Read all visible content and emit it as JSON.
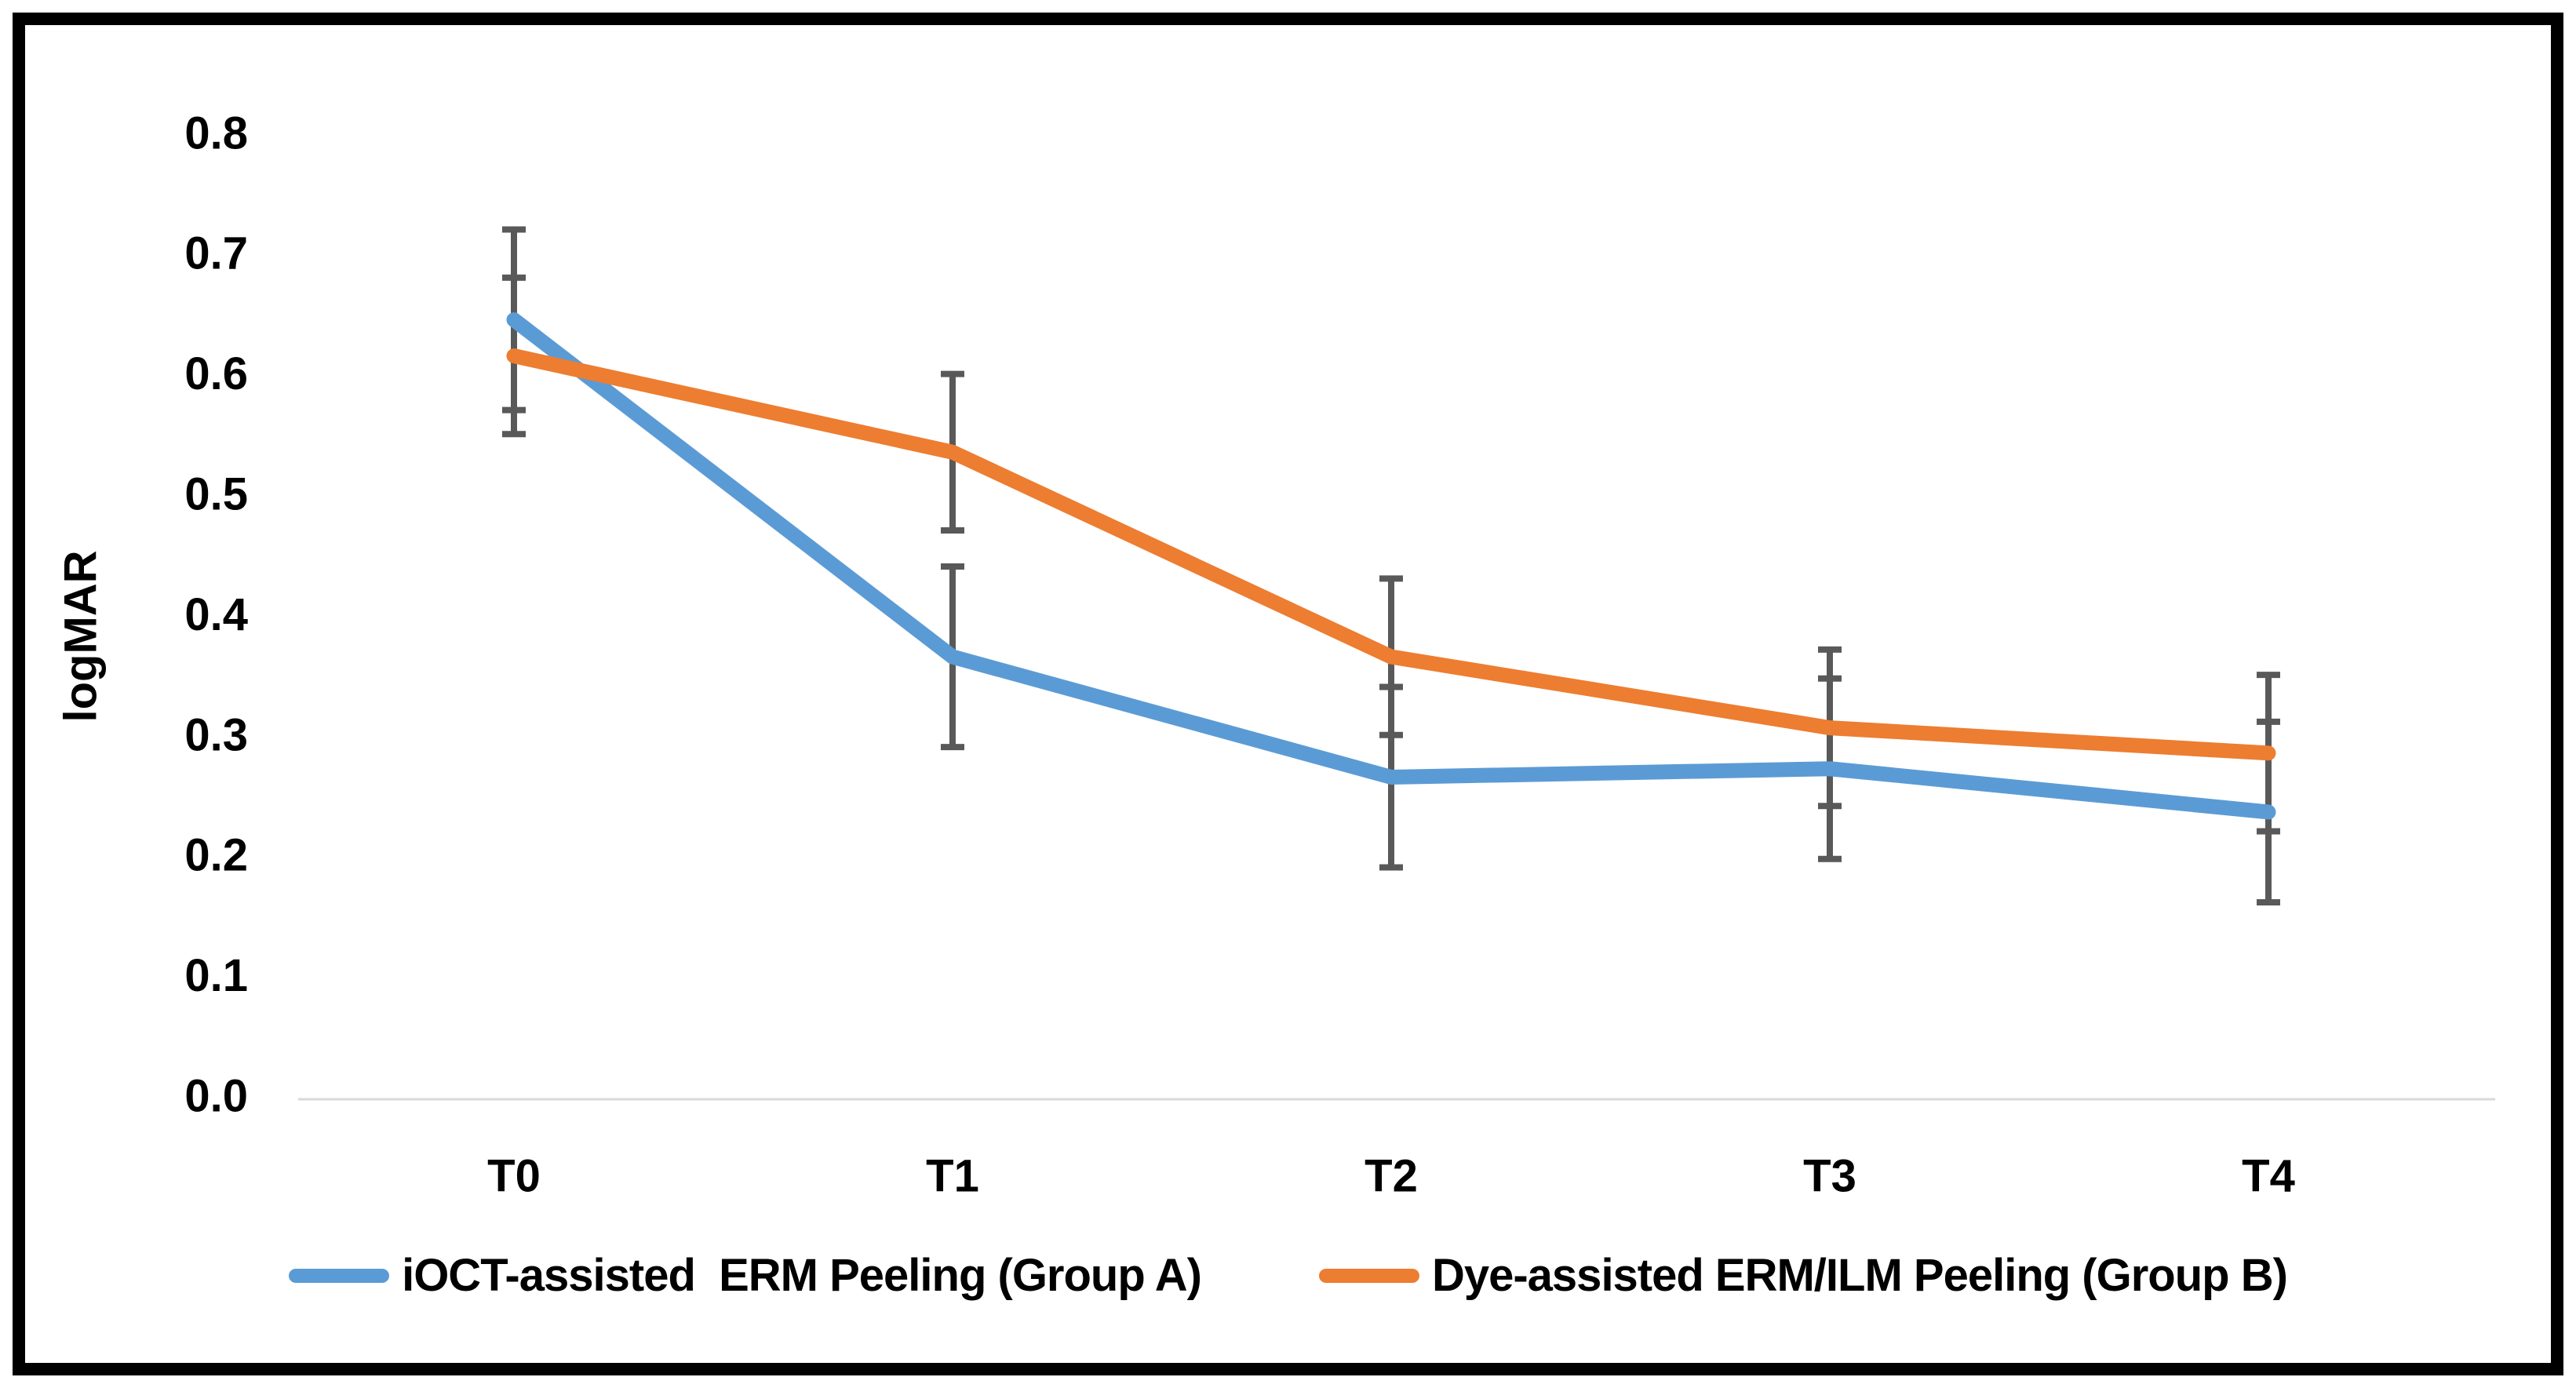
{
  "figure": {
    "background_color": "#ffffff",
    "border_color": "#000000"
  },
  "y_axis": {
    "title": "logMAR",
    "tick_labels": [
      "0.8",
      "0.7",
      "0.6",
      "0.5",
      "0.4",
      "0.3",
      "0.2",
      "0.1",
      "0.0"
    ],
    "min": 0.0,
    "max": 0.8
  },
  "x_axis": {
    "categories": [
      "T0",
      "T1",
      "T2",
      "T3",
      "T4"
    ]
  },
  "chart_data": {
    "type": "line",
    "categories": [
      "T0",
      "T1",
      "T2",
      "T3",
      "T4"
    ],
    "series": [
      {
        "name": "iOCT-assisted  ERM Peeling (Group A)",
        "color": "#5B9BD5",
        "values": [
          0.645,
          0.365,
          0.265,
          0.272,
          0.236
        ],
        "error": [
          0.075,
          0.075,
          0.075,
          0.075,
          0.075
        ]
      },
      {
        "name": "Dye-assisted ERM/ILM Peeling (Group B)",
        "color": "#ED7D31",
        "values": [
          0.615,
          0.535,
          0.365,
          0.306,
          0.285
        ],
        "error": [
          0.065,
          0.065,
          0.065,
          0.065,
          0.065
        ]
      }
    ],
    "title": "",
    "xlabel": "",
    "ylabel": "logMAR",
    "ylim": [
      0.0,
      0.8
    ],
    "y_tick_step": 0.1,
    "grid": false,
    "legend_position": "bottom",
    "error_bar_color": "#595959",
    "axis_line_color": "#D9D9D9",
    "tick_label_color": "#000000"
  }
}
